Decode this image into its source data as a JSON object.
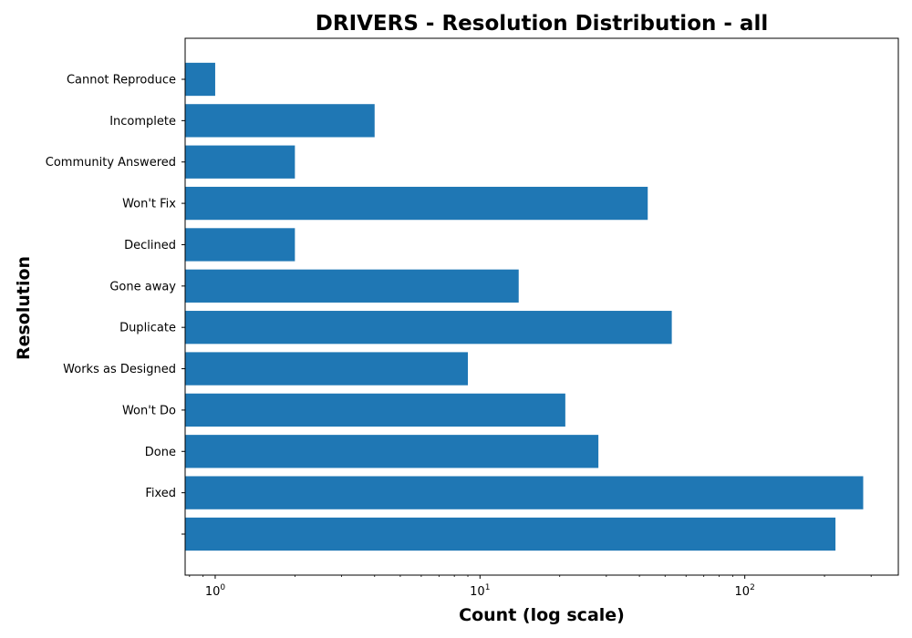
{
  "chart_data": {
    "type": "bar",
    "orientation": "horizontal",
    "title": "DRIVERS - Resolution Distribution - all",
    "xlabel": "Count (log scale)",
    "ylabel": "Resolution",
    "xscale": "log",
    "xlim": [
      0.77,
      380
    ],
    "x_ticks": [
      {
        "value": 1,
        "base": "10",
        "exp": "0"
      },
      {
        "value": 10,
        "base": "10",
        "exp": "1"
      },
      {
        "value": 100,
        "base": "10",
        "exp": "2"
      }
    ],
    "categories": [
      "Cannot Reproduce",
      "Incomplete",
      "Community Answered",
      "Won't Fix",
      "Declined",
      "Gone away",
      "Duplicate",
      "Works as Designed",
      "Won't Do",
      "Done",
      "Fixed",
      ""
    ],
    "values": [
      1,
      4,
      2,
      43,
      2,
      14,
      53,
      9,
      21,
      28,
      280,
      220
    ],
    "bar_color": "#1f77b4",
    "grid": false,
    "legend": "none"
  }
}
